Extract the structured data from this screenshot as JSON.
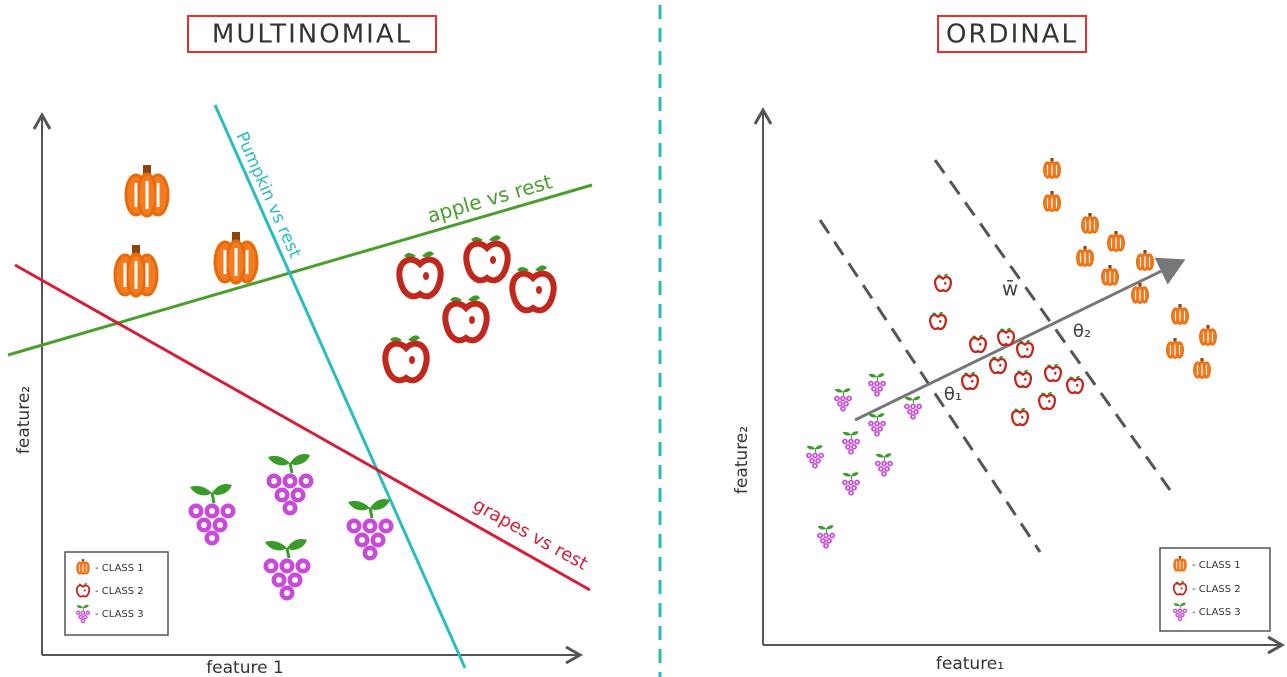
{
  "panels": [
    {
      "title": "MULTINOMIAL",
      "x_label": "feature 1",
      "y_label": "feature₂",
      "boundaries": [
        "apple vs rest",
        "Pumpkin vs rest",
        "grapes vs rest"
      ],
      "legend": [
        "- CLASS 1",
        "- CLASS 2",
        "- CLASS 3"
      ]
    },
    {
      "title": "ORDINAL",
      "x_label": "feature₁",
      "y_label": "feature₂",
      "vector_label": "w̄",
      "thresholds": [
        "θ₁",
        "θ₂"
      ],
      "legend": [
        "- CLASS 1",
        "- CLASS 2",
        "- CLASS 3"
      ]
    }
  ]
}
